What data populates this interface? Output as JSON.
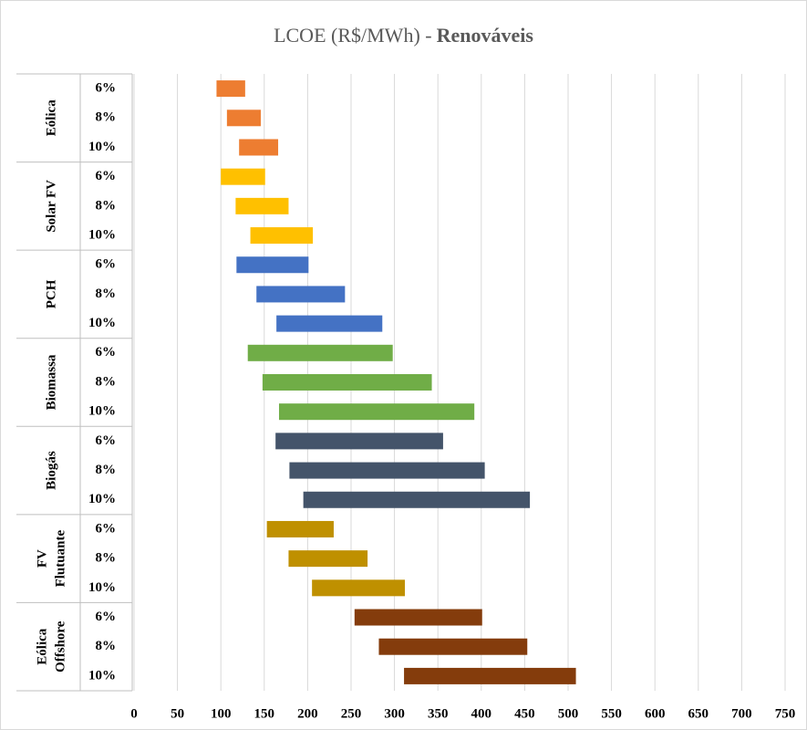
{
  "chart_data": {
    "type": "floating-bar",
    "title": "LCOE (R$/MWh) -",
    "title_emphasis": "Renováveis",
    "xlim": [
      0,
      750
    ],
    "xticks": [
      0,
      50,
      100,
      150,
      200,
      250,
      300,
      350,
      400,
      450,
      500,
      550,
      600,
      650,
      700,
      750
    ],
    "grid": true,
    "groups": [
      {
        "label_lines": [
          "Eólica"
        ],
        "color": "#ED7D31",
        "categories": [
          "6%",
          "8%",
          "10%"
        ],
        "low": [
          95,
          107,
          121
        ],
        "high": [
          128,
          146,
          166
        ]
      },
      {
        "label_lines": [
          "Solar FV"
        ],
        "color": "#FFC000",
        "categories": [
          "6%",
          "8%",
          "10%"
        ],
        "low": [
          100,
          117,
          134
        ],
        "high": [
          151,
          178,
          206
        ]
      },
      {
        "label_lines": [
          "PCH"
        ],
        "color": "#4472C4",
        "categories": [
          "6%",
          "8%",
          "10%"
        ],
        "low": [
          118,
          141,
          164
        ],
        "high": [
          201,
          243,
          286
        ]
      },
      {
        "label_lines": [
          "Biomassa"
        ],
        "color": "#70AD47",
        "categories": [
          "6%",
          "8%",
          "10%"
        ],
        "low": [
          131,
          148,
          167
        ],
        "high": [
          298,
          343,
          392
        ]
      },
      {
        "label_lines": [
          "Biogás"
        ],
        "color": "#44546A",
        "categories": [
          "6%",
          "8%",
          "10%"
        ],
        "low": [
          163,
          179,
          195
        ],
        "high": [
          356,
          404,
          456
        ]
      },
      {
        "label_lines": [
          "FV",
          "Flutuante"
        ],
        "color": "#BF9000",
        "categories": [
          "6%",
          "8%",
          "10%"
        ],
        "low": [
          153,
          178,
          205
        ],
        "high": [
          230,
          269,
          312
        ]
      },
      {
        "label_lines": [
          "Eólica",
          "Offshore"
        ],
        "color": "#843C0C",
        "categories": [
          "6%",
          "8%",
          "10%"
        ],
        "low": [
          254,
          282,
          311
        ],
        "high": [
          401,
          453,
          509
        ]
      }
    ]
  }
}
